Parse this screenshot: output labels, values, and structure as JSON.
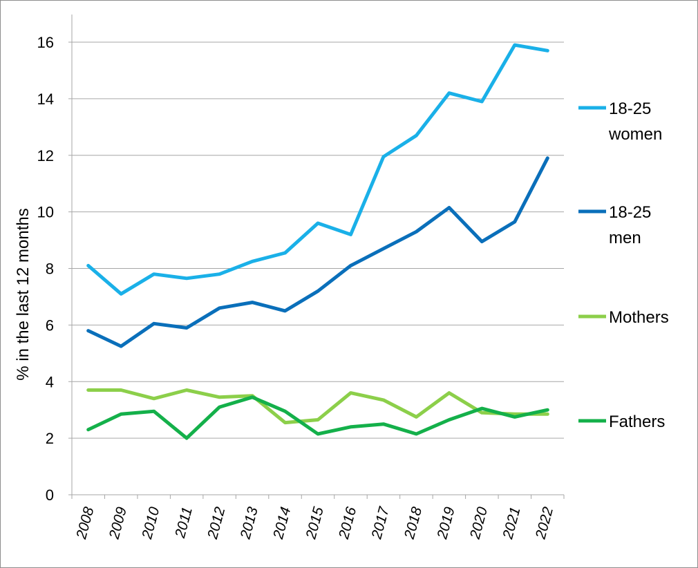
{
  "chart_data": {
    "type": "line",
    "ylabel": "% in the last 12 months",
    "xlabel": "",
    "ylim": [
      0,
      16
    ],
    "yticks": [
      "0",
      "2",
      "4",
      "6",
      "8",
      "10",
      "12",
      "14",
      "16"
    ],
    "categories": [
      "2008",
      "2009",
      "2010",
      "2011",
      "2012",
      "2013",
      "2014",
      "2015",
      "2016",
      "2017",
      "2018",
      "2019",
      "2020",
      "2021",
      "2022"
    ],
    "grid": true,
    "legend_position": "right",
    "series": [
      {
        "name": "18-25 women",
        "color": "#1ab0e8",
        "values": [
          8.1,
          7.1,
          7.8,
          7.65,
          7.8,
          8.25,
          8.55,
          9.6,
          9.2,
          11.95,
          12.7,
          14.2,
          13.9,
          15.9,
          15.7
        ]
      },
      {
        "name": "18-25 men",
        "color": "#0a6fba",
        "values": [
          5.8,
          5.25,
          6.05,
          5.9,
          6.6,
          6.8,
          6.5,
          7.2,
          8.1,
          8.7,
          9.3,
          10.15,
          8.95,
          9.65,
          11.9
        ]
      },
      {
        "name": "Mothers",
        "color": "#8ccf4a",
        "values": [
          3.7,
          3.7,
          3.4,
          3.7,
          3.45,
          3.5,
          2.55,
          2.65,
          3.6,
          3.35,
          2.75,
          3.6,
          2.9,
          2.85,
          2.85
        ]
      },
      {
        "name": "Fathers",
        "color": "#14b04a",
        "values": [
          2.3,
          2.85,
          2.95,
          2.0,
          3.1,
          3.45,
          2.95,
          2.15,
          2.4,
          2.5,
          2.15,
          2.65,
          3.05,
          2.75,
          3.0
        ]
      }
    ]
  }
}
